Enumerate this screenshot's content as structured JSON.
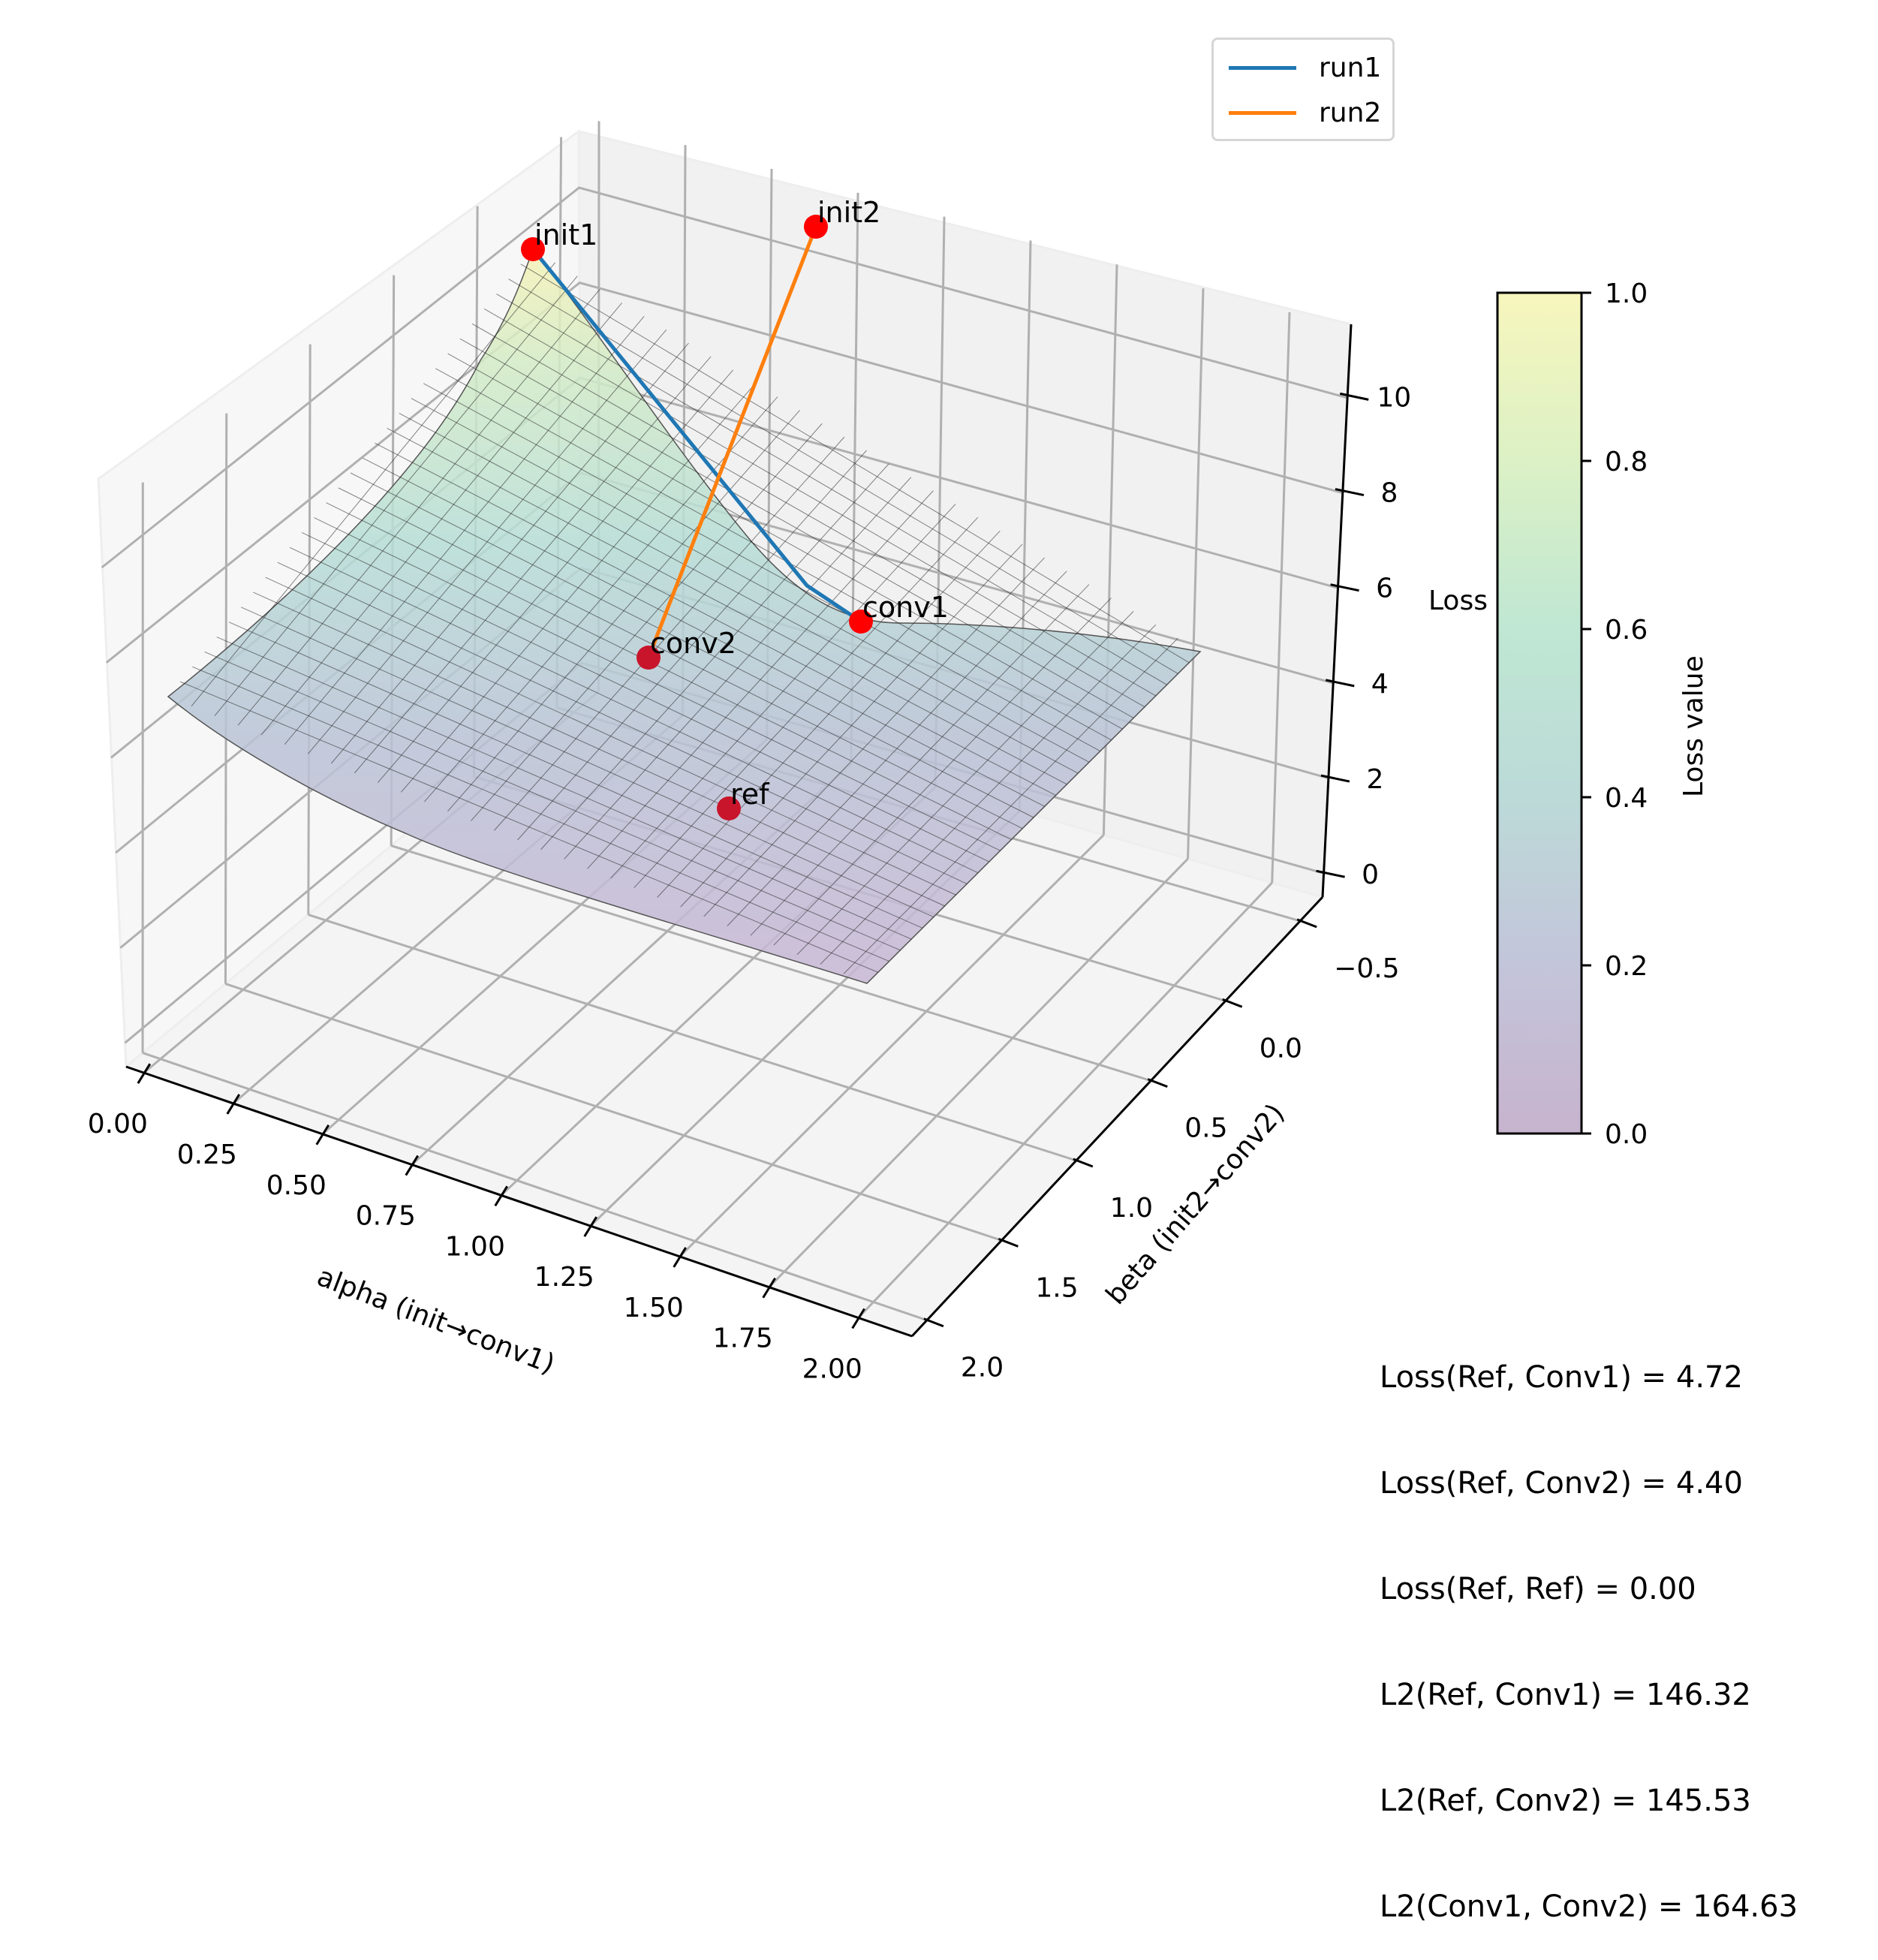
{
  "chart_data": {
    "type": "surface3d",
    "title": "",
    "xlabel": "alpha (init→conv1)",
    "ylabel": "beta (init2→conv2)",
    "zlabel": "Loss",
    "x_ticks": [
      "0.00",
      "0.25",
      "0.50",
      "0.75",
      "1.00",
      "1.25",
      "1.50",
      "1.75",
      "2.00"
    ],
    "x_tick_values": [
      0.0,
      0.25,
      0.5,
      0.75,
      1.0,
      1.25,
      1.5,
      1.75,
      2.0
    ],
    "y_ticks": [
      "−0.5",
      "0.0",
      "0.5",
      "1.0",
      "1.5",
      "2.0"
    ],
    "y_tick_values": [
      -0.5,
      0.0,
      0.5,
      1.0,
      1.5,
      2.0
    ],
    "z_ticks": [
      "0",
      "2",
      "4",
      "6",
      "8",
      "10"
    ],
    "z_tick_values": [
      0,
      2,
      4,
      6,
      8,
      10
    ],
    "xlim": [
      -0.05,
      2.15
    ],
    "ylim": [
      -0.65,
      2.1
    ],
    "zlim": [
      -0.5,
      11.5
    ],
    "grid": true,
    "surface": {
      "alpha_range": [
        -0.15,
        2.0
      ],
      "beta_range": [
        -0.6,
        1.9
      ],
      "colormap": "viridis (transparent)",
      "opacity": 0.3,
      "peak_value": 11.0
    },
    "points": [
      {
        "label": "init1",
        "alpha": 0.0,
        "beta": 0.0,
        "loss": 11.0
      },
      {
        "label": "init2",
        "alpha": 0.0,
        "beta": 1.0,
        "loss": 11.2
      },
      {
        "label": "conv1",
        "alpha": 1.0,
        "beta": 0.0,
        "loss": 4.72
      },
      {
        "label": "conv2",
        "alpha": 0.0,
        "beta": 1.0,
        "loss": 4.4
      },
      {
        "label": "ref",
        "alpha": 1.0,
        "beta": 1.0,
        "loss": 0.0
      }
    ],
    "point_color": "#ff0000",
    "series": [
      {
        "name": "run1",
        "color": "#1f77b4",
        "path": [
          "init1",
          "conv1"
        ]
      },
      {
        "name": "run2",
        "color": "#ff7f0e",
        "path": [
          "init2",
          "conv2"
        ]
      }
    ],
    "legend": {
      "placement": "top-right",
      "entries": [
        "run1",
        "run2"
      ]
    },
    "colorbar": {
      "label": "Loss value",
      "ticks": [
        "0.0",
        "0.2",
        "0.4",
        "0.6",
        "0.8",
        "1.0"
      ],
      "range": [
        0.0,
        1.0
      ],
      "colors": [
        "#c7b3cd",
        "#c3c5da",
        "#bcdad8",
        "#bfe7d3",
        "#dcf1c5",
        "#f7f6bd"
      ]
    },
    "annotations": [
      "Loss(Ref, Conv1) = 4.72",
      "Loss(Ref, Conv2) = 4.40",
      "Loss(Ref, Ref) = 0.00",
      "L2(Ref, Conv1) = 146.32",
      "L2(Ref, Conv2) = 145.53",
      "L2(Conv1, Conv2) = 164.63"
    ]
  }
}
